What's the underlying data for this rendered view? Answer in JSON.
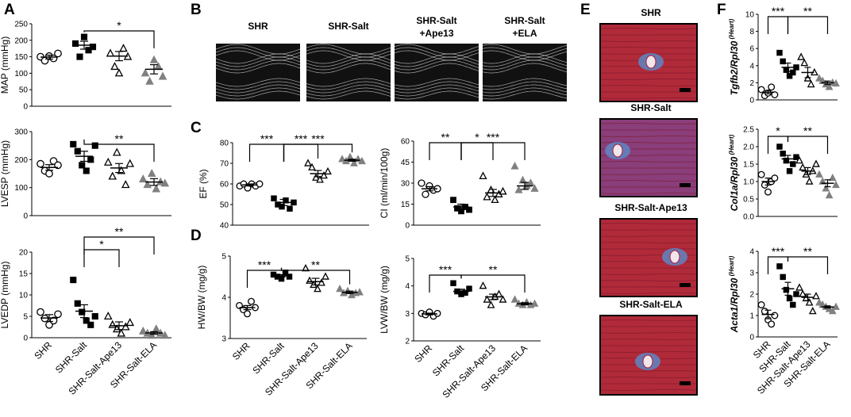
{
  "panels": {
    "A": "A",
    "B": "B",
    "C": "C",
    "D": "D",
    "E": "E",
    "F": "F"
  },
  "groups": [
    "SHR",
    "SHR-Salt",
    "SHR-Salt-Ape13",
    "SHR-Salt-ELA"
  ],
  "echo_labels": [
    [
      "SHR"
    ],
    [
      "SHR-Salt"
    ],
    [
      "SHR-Salt",
      "+Ape13"
    ],
    [
      "SHR-Salt",
      "+ELA"
    ]
  ],
  "histo_labels": [
    "SHR",
    "SHR-Salt",
    "SHR-Salt-Ape13",
    "SHR-Salt-ELA"
  ],
  "colors": {
    "shr": "#000000",
    "salt": "#000000",
    "ape13": "#000000",
    "ela": "#808080",
    "tissue": "#b02a3a",
    "fibrosis": "#5f86c4"
  },
  "chart_data": [
    {
      "id": "MAP",
      "type": "scatter",
      "ylabel": "MAP (mmHg)",
      "yticks": [
        "0",
        "50",
        "100",
        "150",
        "200",
        "250"
      ],
      "ylim": [
        0,
        250
      ],
      "series": [
        {
          "values": [
            150,
            138,
            152,
            145,
            160
          ],
          "mean": 149,
          "sem": 6
        },
        {
          "values": [
            190,
            150,
            210,
            170,
            180
          ],
          "mean": 185,
          "sem": 12
        },
        {
          "values": [
            160,
            120,
            100,
            175,
            150
          ],
          "mean": 152,
          "sem": 14
        },
        {
          "values": [
            100,
            75,
            140,
            120,
            90
          ],
          "mean": 112,
          "sem": 14
        }
      ],
      "brackets": [
        {
          "from": 1,
          "to": 3,
          "label": "*"
        }
      ]
    },
    {
      "id": "LVESP",
      "type": "scatter",
      "ylabel": "LVESP (mmHg)",
      "yticks": [
        "0",
        "100",
        "200",
        "300"
      ],
      "ylim": [
        0,
        300
      ],
      "series": [
        {
          "values": [
            185,
            160,
            150,
            195,
            180
          ],
          "mean": 172,
          "sem": 10
        },
        {
          "values": [
            255,
            230,
            180,
            160,
            200,
            250
          ],
          "mean": 212,
          "sem": 18
        },
        {
          "values": [
            190,
            140,
            225,
            160,
            110,
            185
          ],
          "mean": 170,
          "sem": 16
        },
        {
          "values": [
            130,
            110,
            150,
            95,
            120,
            115
          ],
          "mean": 120,
          "sem": 12
        }
      ],
      "brackets": [
        {
          "from": 1,
          "to": 3,
          "label": "**"
        }
      ]
    },
    {
      "id": "LVEDP",
      "type": "scatter",
      "ylabel": "LVEDP (mmHg)",
      "yticks": [
        "0",
        "5",
        "10",
        "15",
        "20"
      ],
      "ylim": [
        0,
        20
      ],
      "series": [
        {
          "values": [
            6,
            4.5,
            3,
            4,
            5.5
          ],
          "mean": 4.6,
          "sem": 0.8
        },
        {
          "values": [
            13.5,
            8,
            6,
            4,
            3,
            5
          ],
          "mean": 6.2,
          "sem": 1.5
        },
        {
          "values": [
            5,
            3,
            2,
            1,
            2.5,
            3.5
          ],
          "mean": 2.8,
          "sem": 0.9
        },
        {
          "values": [
            1.5,
            1,
            0.5,
            2,
            1,
            0.5
          ],
          "mean": 1.1,
          "sem": 0.3
        }
      ],
      "brackets": [
        {
          "from": 1,
          "to": 2,
          "label": "*"
        },
        {
          "from": 1,
          "to": 3,
          "label": "**"
        }
      ]
    },
    {
      "id": "EF",
      "type": "scatter",
      "ylabel": "EF (%)",
      "yticks": [
        "40",
        "50",
        "60",
        "70",
        "80"
      ],
      "ylim": [
        40,
        80
      ],
      "series": [
        {
          "values": [
            59,
            60,
            58,
            60,
            59,
            60
          ],
          "mean": 59.5,
          "sem": 0.5
        },
        {
          "values": [
            53,
            50,
            49,
            52,
            48,
            51
          ],
          "mean": 51,
          "sem": 1.5
        },
        {
          "values": [
            70,
            68,
            63,
            62,
            64,
            66
          ],
          "mean": 65,
          "sem": 1.5
        },
        {
          "values": [
            72,
            71,
            73,
            70,
            72,
            71
          ],
          "mean": 71.5,
          "sem": 0.5
        }
      ],
      "brackets": [
        {
          "from": 0,
          "to": 1,
          "label": "***"
        },
        {
          "from": 1,
          "to": 2,
          "label": "***"
        },
        {
          "from": 1,
          "to": 3,
          "label": "***"
        }
      ]
    },
    {
      "id": "CI",
      "type": "scatter",
      "ylabel": "CI (ml/min/100g)",
      "yticks": [
        "0",
        "15",
        "30",
        "45",
        "60"
      ],
      "ylim": [
        0,
        60
      ],
      "series": [
        {
          "values": [
            30,
            22,
            28,
            25,
            26
          ],
          "mean": 26,
          "sem": 1.5
        },
        {
          "values": [
            18,
            12,
            10,
            13,
            11
          ],
          "mean": 13,
          "sem": 2
        },
        {
          "values": [
            35,
            20,
            25,
            18,
            22,
            24
          ],
          "mean": 23,
          "sem": 2.5
        },
        {
          "values": [
            42,
            25,
            32,
            28,
            30,
            26
          ],
          "mean": 28,
          "sem": 2.5
        }
      ],
      "brackets": [
        {
          "from": 0,
          "to": 1,
          "label": "**"
        },
        {
          "from": 1,
          "to": 2,
          "label": "*"
        },
        {
          "from": 1,
          "to": 3,
          "label": "***"
        }
      ]
    },
    {
      "id": "HWBW",
      "type": "scatter",
      "ylabel": "HW/BW (mg/g)",
      "yticks": [
        "3",
        "4",
        "5"
      ],
      "ylim": [
        3,
        5
      ],
      "series": [
        {
          "values": [
            3.8,
            3.7,
            3.6,
            3.9,
            3.75
          ],
          "mean": 3.75,
          "sem": 0.05
        },
        {
          "values": [
            4.55,
            4.5,
            4.45,
            4.6,
            4.5
          ],
          "mean": 4.52,
          "sem": 0.03
        },
        {
          "values": [
            4.7,
            4.4,
            4.3,
            4.2,
            4.35,
            4.5
          ],
          "mean": 4.38,
          "sem": 0.08
        },
        {
          "values": [
            4.2,
            4.1,
            4.15,
            4.05,
            4.1,
            4.12
          ],
          "mean": 4.12,
          "sem": 0.03
        }
      ],
      "brackets": [
        {
          "from": 0,
          "to": 1,
          "label": "***"
        },
        {
          "from": 1,
          "to": 3,
          "label": "**"
        }
      ]
    },
    {
      "id": "LVWBW",
      "type": "scatter",
      "ylabel": "LVW/BW (mg/g)",
      "yticks": [
        "2",
        "3",
        "4",
        "5"
      ],
      "ylim": [
        2,
        5
      ],
      "series": [
        {
          "values": [
            3.0,
            2.95,
            3.05,
            2.9,
            3.0
          ],
          "mean": 2.98,
          "sem": 0.03
        },
        {
          "values": [
            4.1,
            3.8,
            3.7,
            3.75,
            3.9
          ],
          "mean": 3.8,
          "sem": 0.08
        },
        {
          "values": [
            4.0,
            3.5,
            3.3,
            3.6,
            3.7,
            3.5
          ],
          "mean": 3.6,
          "sem": 0.1
        },
        {
          "values": [
            3.5,
            3.35,
            3.3,
            3.4,
            3.3,
            3.35
          ],
          "mean": 3.35,
          "sem": 0.04
        }
      ],
      "brackets": [
        {
          "from": 0,
          "to": 1,
          "label": "***"
        },
        {
          "from": 1,
          "to": 3,
          "label": "**"
        }
      ]
    },
    {
      "id": "Tgfb2",
      "type": "scatter",
      "ylabel": "Tgfb2/Rpl30",
      "ylabel_sup": "(Heart)",
      "yticks": [
        "0",
        "2",
        "4",
        "6",
        "8",
        "10"
      ],
      "ylim": [
        0,
        10
      ],
      "series": [
        {
          "values": [
            1.2,
            0.5,
            0.8,
            1.5,
            0.6
          ],
          "mean": 0.9,
          "sem": 0.2
        },
        {
          "values": [
            5.5,
            4.5,
            3.5,
            2.8,
            3.2,
            3.8
          ],
          "mean": 3.8,
          "sem": 0.5
        },
        {
          "values": [
            5.0,
            4.3,
            2.5,
            1.8,
            3.2
          ],
          "mean": 3.2,
          "sem": 0.6
        },
        {
          "values": [
            2.5,
            2.2,
            1.8,
            1.5,
            2.0,
            1.9
          ],
          "mean": 2.0,
          "sem": 0.2
        }
      ],
      "brackets": [
        {
          "from": 0,
          "to": 1,
          "label": "***"
        },
        {
          "from": 1,
          "to": 3,
          "label": "**"
        }
      ]
    },
    {
      "id": "Col1a",
      "type": "scatter",
      "ylabel": "Col1a/Rpl30",
      "ylabel_sup": "(Heart)",
      "yticks": [
        "0.0",
        "0.5",
        "1.0",
        "1.5",
        "2.0",
        "2.5"
      ],
      "ylim": [
        0,
        2.5
      ],
      "series": [
        {
          "values": [
            1.2,
            0.9,
            0.7,
            1.0,
            1.1
          ],
          "mean": 1.0,
          "sem": 0.1
        },
        {
          "values": [
            2.0,
            1.8,
            1.6,
            1.3,
            1.5,
            1.7
          ],
          "mean": 1.65,
          "sem": 0.1
        },
        {
          "values": [
            1.6,
            1.4,
            1.2,
            1.0,
            1.3,
            1.5
          ],
          "mean": 1.3,
          "sem": 0.1
        },
        {
          "values": [
            1.2,
            1.0,
            0.8,
            0.6,
            1.1,
            0.9
          ],
          "mean": 0.95,
          "sem": 0.1
        }
      ],
      "brackets": [
        {
          "from": 0,
          "to": 1,
          "label": "*"
        },
        {
          "from": 1,
          "to": 3,
          "label": "**"
        }
      ]
    },
    {
      "id": "Acta1",
      "type": "scatter",
      "ylabel": "Acta1/Rpl30",
      "ylabel_sup": "(Heart)",
      "yticks": [
        "0",
        "1",
        "2",
        "3",
        "4"
      ],
      "ylim": [
        0,
        4
      ],
      "series": [
        {
          "values": [
            1.5,
            1.2,
            0.8,
            0.6,
            1.0
          ],
          "mean": 1.05,
          "sem": 0.2
        },
        {
          "values": [
            3.3,
            2.8,
            2.2,
            1.8,
            1.5,
            2.0
          ],
          "mean": 2.25,
          "sem": 0.3
        },
        {
          "values": [
            2.3,
            2.0,
            1.8,
            1.6,
            1.2,
            1.9
          ],
          "mean": 1.85,
          "sem": 0.15
        },
        {
          "values": [
            1.6,
            1.5,
            1.4,
            1.3,
            1.2,
            1.4
          ],
          "mean": 1.4,
          "sem": 0.05
        }
      ],
      "brackets": [
        {
          "from": 0,
          "to": 1,
          "label": "***"
        },
        {
          "from": 1,
          "to": 3,
          "label": "**"
        }
      ]
    }
  ]
}
